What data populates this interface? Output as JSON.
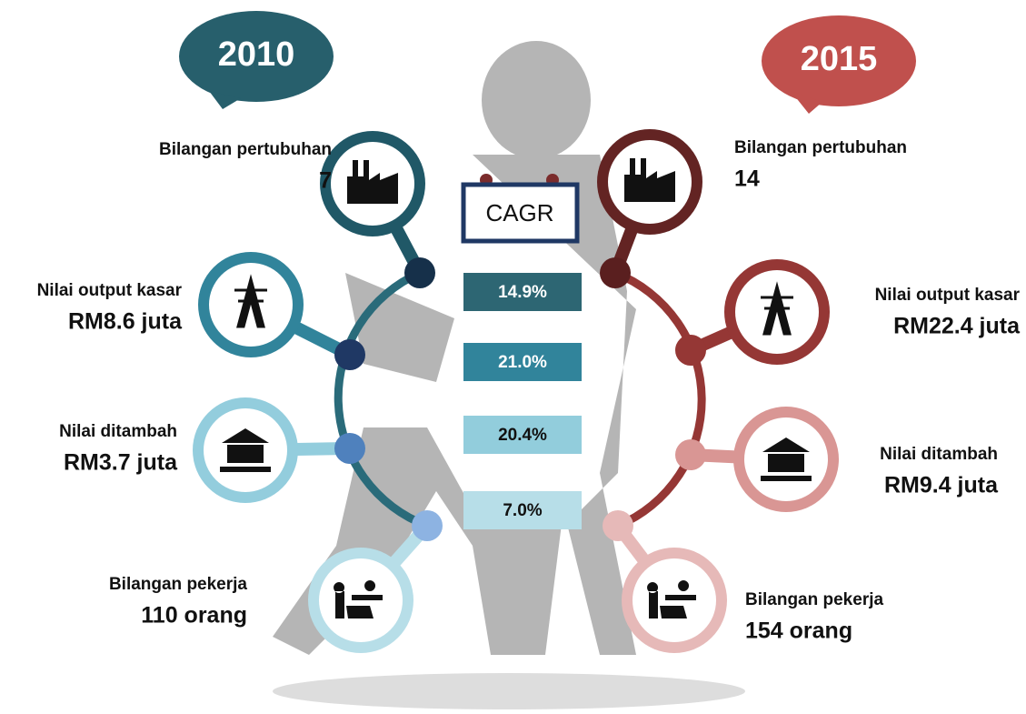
{
  "left": {
    "year": "2010",
    "items": [
      {
        "label": "Bilangan pertubuhan",
        "value": "7"
      },
      {
        "label": "Nilai output kasar",
        "value": "RM8.6 juta"
      },
      {
        "label": "Nilai ditambah",
        "value": "RM3.7 juta"
      },
      {
        "label": "Bilangan pekerja",
        "value": "110 orang"
      }
    ]
  },
  "right": {
    "year": "2015",
    "items": [
      {
        "label": "Bilangan pertubuhan",
        "value": "14"
      },
      {
        "label": "Nilai output kasar",
        "value": "RM22.4 juta"
      },
      {
        "label": "Nilai ditambah",
        "value": "RM9.4 juta"
      },
      {
        "label": "Bilangan pekerja",
        "value": "154 orang"
      }
    ]
  },
  "cagr": {
    "title": "CAGR",
    "values": [
      "14.9%",
      "21.0%",
      "20.4%",
      "7.0%"
    ]
  }
}
